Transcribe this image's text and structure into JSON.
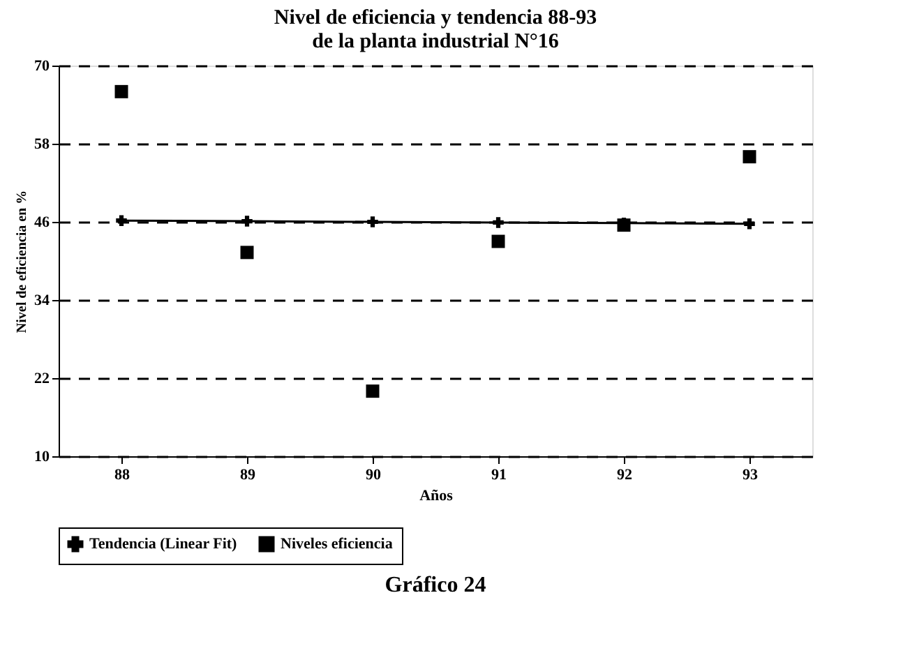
{
  "chart_data": {
    "type": "scatter",
    "title": [
      "Nivel de eficiencia y tendencia 88-93",
      "de la planta industrial N°16"
    ],
    "categories": [
      "88",
      "89",
      "90",
      "91",
      "92",
      "93"
    ],
    "xlabel": "Años",
    "ylabel": "Nivel de eficiencia en %",
    "ylim": [
      10,
      70
    ],
    "yticks": [
      10,
      22,
      34,
      46,
      58,
      70
    ],
    "grid": "y",
    "legend": "bottom",
    "series": [
      {
        "name": "Tendencia  (Linear Fit)",
        "type": "line",
        "marker": "cross",
        "color": "#000000",
        "values": [
          46.2,
          46.1,
          46.0,
          45.9,
          45.8,
          45.7
        ]
      },
      {
        "name": "Niveles eficiencia",
        "marker": "square",
        "color": "#000000",
        "values": [
          66,
          41.3,
          20,
          43,
          45.5,
          56
        ]
      }
    ],
    "annotations": [
      "Gráfico 24"
    ]
  }
}
